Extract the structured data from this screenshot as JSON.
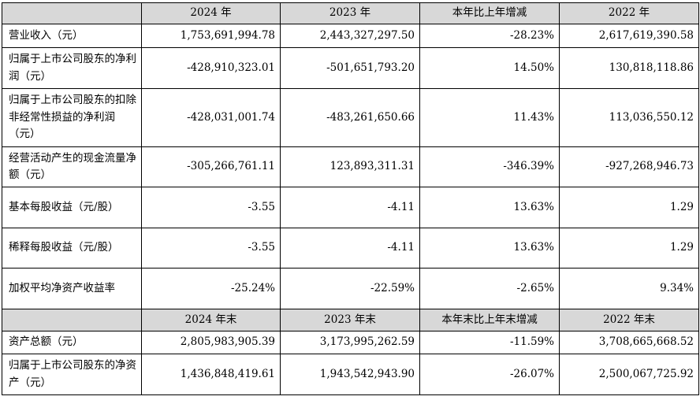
{
  "table": {
    "header_1": [
      "",
      "2024 年",
      "2023 年",
      "本年比上年增减",
      "2022 年"
    ],
    "rows_1": [
      {
        "label": "营业收入（元）",
        "values": [
          "1,753,691,994.78",
          "2,443,327,297.50",
          "-28.23%",
          "2,617,619,390.58"
        ]
      },
      {
        "label": "归属于上市公司股东的净利润（元）",
        "values": [
          "-428,910,323.01",
          "-501,651,793.20",
          "14.50%",
          "130,818,118.86"
        ]
      },
      {
        "label": "归属于上市公司股东的扣除非经常性损益的净利润（元）",
        "values": [
          "-428,031,001.74",
          "-483,261,650.66",
          "11.43%",
          "113,036,550.12"
        ]
      },
      {
        "label": "经营活动产生的现金流量净额（元）",
        "values": [
          "-305,266,761.11",
          "123,893,311.31",
          "-346.39%",
          "-927,268,946.73"
        ]
      },
      {
        "label": "基本每股收益（元/股）",
        "values": [
          "-3.55",
          "-4.11",
          "13.63%",
          "1.29"
        ]
      },
      {
        "label": "稀释每股收益（元/股）",
        "values": [
          "-3.55",
          "-4.11",
          "13.63%",
          "1.29"
        ]
      },
      {
        "label": "加权平均净资产收益率",
        "values": [
          "-25.24%",
          "-22.59%",
          "-2.65%",
          "9.34%"
        ]
      }
    ],
    "header_2": [
      "",
      "2024 年末",
      "2023 年末",
      "本年末比上年末增减",
      "2022 年末"
    ],
    "rows_2": [
      {
        "label": "资产总额（元）",
        "values": [
          "2,805,983,905.39",
          "3,173,995,262.59",
          "-11.59%",
          "3,708,665,668.52"
        ]
      },
      {
        "label": "归属于上市公司股东的净资产（元）",
        "values": [
          "1,436,848,419.61",
          "1,943,542,943.90",
          "-26.07%",
          "2,500,067,725.92"
        ]
      }
    ]
  }
}
